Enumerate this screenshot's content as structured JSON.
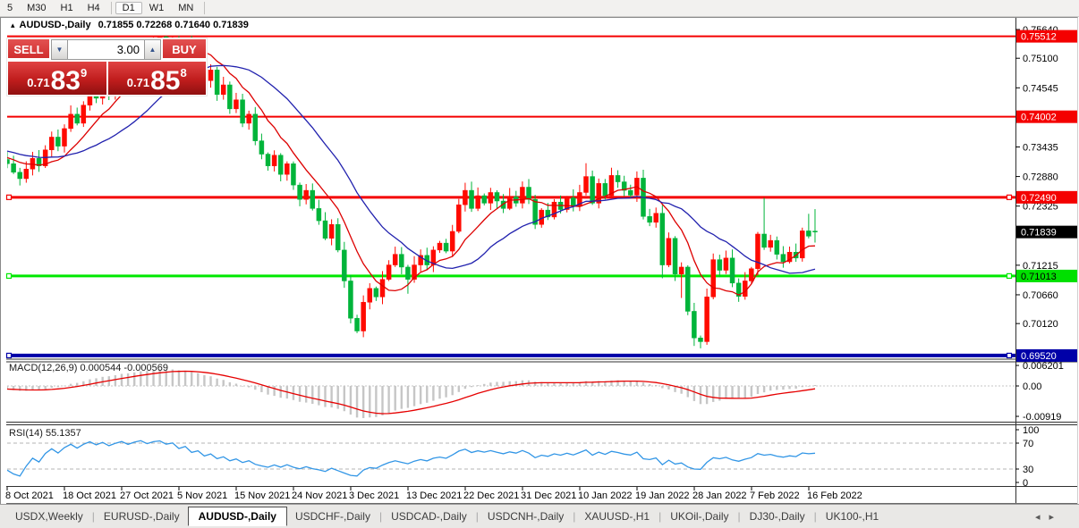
{
  "toolbar": {
    "timeframes": [
      "5",
      "M30",
      "H1",
      "H4",
      "D1",
      "W1",
      "MN"
    ],
    "active": "D1"
  },
  "title": {
    "collapse_icon": "▴",
    "symbol": "AUDUSD-,Daily",
    "ohlc": "0.71855 0.72268 0.71640 0.71839"
  },
  "trade_panel": {
    "sell_label": "SELL",
    "buy_label": "BUY",
    "volume": "3.00",
    "spinner_down": "▼",
    "spinner_up": "▲",
    "sell_price": {
      "prefix": "0.71",
      "big": "83",
      "sup": "9"
    },
    "buy_price": {
      "prefix": "0.71",
      "big": "85",
      "sup": "8"
    }
  },
  "chart_data": {
    "type": "candlestick",
    "symbol": "AUDUSD-,Daily",
    "price_axis": {
      "ticks": [
        "0.75640",
        "0.75100",
        "0.74545",
        "0.73435",
        "0.72880",
        "0.72325",
        "0.71215",
        "0.70660",
        "0.70120"
      ],
      "badges": [
        {
          "value": "0.75512",
          "bg": "#f40000",
          "fg": "#ffffff"
        },
        {
          "value": "0.74002",
          "bg": "#f40000",
          "fg": "#ffffff"
        },
        {
          "value": "0.72490",
          "bg": "#f40000",
          "fg": "#ffffff"
        },
        {
          "value": "0.71839",
          "bg": "#000000",
          "fg": "#ffffff"
        },
        {
          "value": "0.71013",
          "bg": "#00e000",
          "fg": "#000000"
        },
        {
          "value": "0.69520",
          "bg": "#0000a8",
          "fg": "#ffffff"
        }
      ]
    },
    "hlines": [
      {
        "price": 0.75512,
        "color": "#f40000",
        "width": 2,
        "handles": false
      },
      {
        "price": 0.74002,
        "color": "#f40000",
        "width": 2,
        "handles": false
      },
      {
        "price": 0.7249,
        "color": "#f40000",
        "width": 3,
        "handles": true
      },
      {
        "price": 0.71013,
        "color": "#00e800",
        "width": 3,
        "handles": true
      },
      {
        "price": 0.6952,
        "color": "#0000a8",
        "width": 4,
        "handles": true
      }
    ],
    "candles": {
      "bull_color": "#ff0a00",
      "bear_color": "#00b43a",
      "open0": 0.732,
      "closes": [
        0.7312,
        0.7296,
        0.7284,
        0.7302,
        0.7322,
        0.7308,
        0.7338,
        0.7362,
        0.7345,
        0.7378,
        0.7405,
        0.7388,
        0.7422,
        0.745,
        0.7435,
        0.7462,
        0.7445,
        0.7472,
        0.7495,
        0.748,
        0.7508,
        0.7528,
        0.7512,
        0.7538,
        0.755,
        0.7532,
        0.7548,
        0.7515,
        0.7538,
        0.7495,
        0.7512,
        0.7468,
        0.7488,
        0.7442,
        0.746,
        0.7415,
        0.7432,
        0.7388,
        0.7405,
        0.7355,
        0.733,
        0.7308,
        0.7328,
        0.7292,
        0.7312,
        0.7272,
        0.7245,
        0.7262,
        0.7228,
        0.7205,
        0.7172,
        0.7198,
        0.715,
        0.7092,
        0.7022,
        0.6998,
        0.7052,
        0.7078,
        0.7062,
        0.7095,
        0.7122,
        0.7142,
        0.7118,
        0.7095,
        0.7122,
        0.714,
        0.7122,
        0.715,
        0.7163,
        0.7148,
        0.7185,
        0.7235,
        0.7262,
        0.7228,
        0.7252,
        0.7238,
        0.7258,
        0.7242,
        0.7228,
        0.725,
        0.7238,
        0.7268,
        0.7245,
        0.7198,
        0.7225,
        0.7212,
        0.724,
        0.7226,
        0.7248,
        0.7232,
        0.7258,
        0.7288,
        0.7238,
        0.7275,
        0.7252,
        0.729,
        0.7278,
        0.7262,
        0.7253,
        0.7285,
        0.7213,
        0.7202,
        0.7219,
        0.7122,
        0.7172,
        0.7105,
        0.7118,
        0.7035,
        0.6985,
        0.6978,
        0.7062,
        0.7132,
        0.7112,
        0.7135,
        0.7088,
        0.7063,
        0.7092,
        0.7115,
        0.718,
        0.7155,
        0.7168,
        0.7142,
        0.7128,
        0.7146,
        0.7135,
        0.7186,
        0.7176,
        0.71839
      ],
      "overrides": {
        "55": {
          "low": 0.6994
        },
        "63": {
          "low": 0.7068
        },
        "91": {
          "high": 0.7313
        },
        "103": {
          "low": 0.7097
        },
        "106": {
          "low": 0.706
        },
        "108": {
          "low": 0.697
        },
        "119": {
          "high": 0.7248
        },
        "126": {
          "high": 0.7218
        },
        "127": {
          "open": 0.71855,
          "high": 0.72268,
          "low": 0.7164
        }
      }
    },
    "moving_averages": [
      {
        "window": 9,
        "color": "#dd0000"
      },
      {
        "window": 21,
        "color": "#2121ae"
      }
    ],
    "macd": {
      "label": "MACD(12,26,9)",
      "values": "0.000544 -0.000569",
      "axis_labels": [
        "0.006201",
        "0.00",
        "-0.00919"
      ],
      "axis_values": [
        0.006201,
        0.0,
        -0.00919
      ],
      "hist_color": "#c6c6c6",
      "signal_color": "#e60000"
    },
    "rsi": {
      "label": "RSI(14)",
      "value": "55.1357",
      "levels": [
        70,
        30
      ],
      "axis_labels": [
        "100",
        "70",
        "30",
        "0"
      ],
      "axis_values": [
        100,
        70,
        30,
        0
      ],
      "color": "#3296e6"
    },
    "dates": [
      "8 Oct 2021",
      "18 Oct 2021",
      "27 Oct 2021",
      "5 Nov 2021",
      "15 Nov 2021",
      "24 Nov 2021",
      "3 Dec 2021",
      "13 Dec 2021",
      "22 Dec 2021",
      "31 Dec 2021",
      "10 Jan 2022",
      "19 Jan 2022",
      "28 Jan 2022",
      "7 Feb 2022",
      "16 Feb 2022"
    ]
  },
  "tabs": {
    "items": [
      "USDX,Weekly",
      "EURUSD-,Daily",
      "AUDUSD-,Daily",
      "USDCHF-,Daily",
      "USDCAD-,Daily",
      "USDCNH-,Daily",
      "XAUUSD-,H1",
      "UKOil-,Daily",
      "DJ30-,Daily",
      "UK100-,H1"
    ],
    "active_index": 2,
    "arrow_left": "◂",
    "arrow_right": "▸"
  }
}
